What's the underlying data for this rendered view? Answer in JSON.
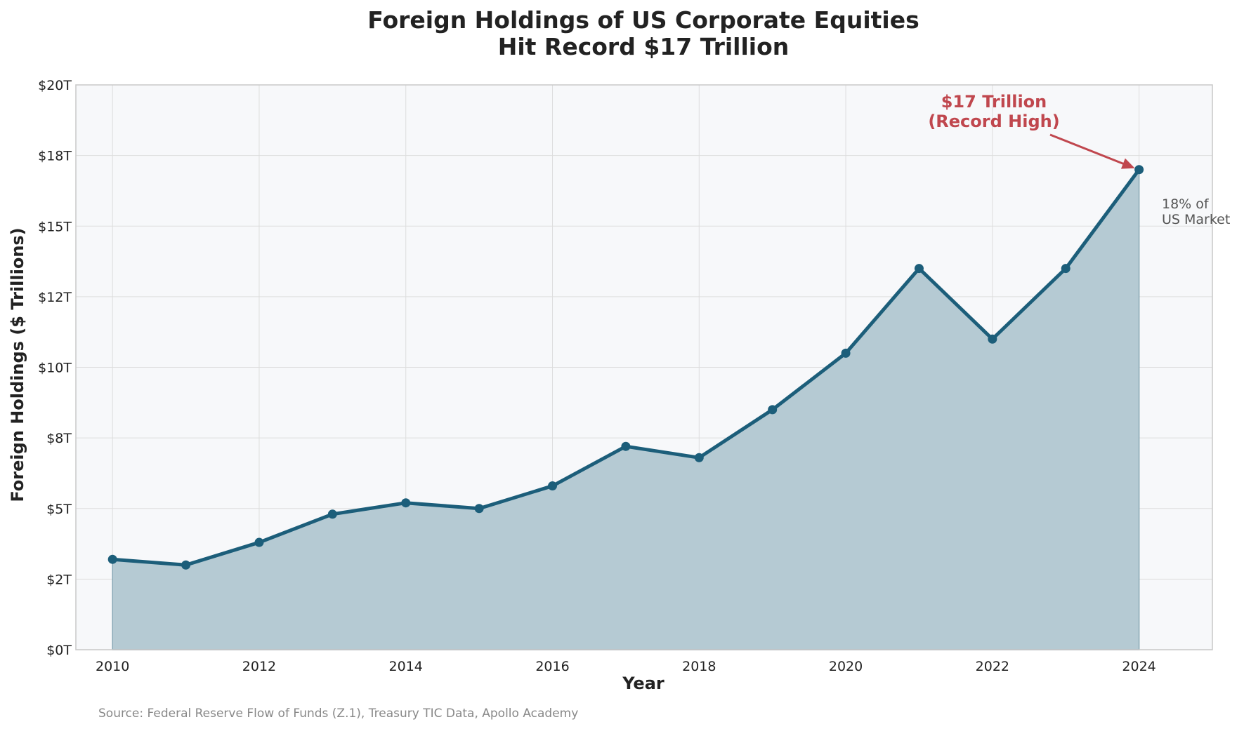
{
  "chart_data": {
    "type": "area",
    "title_lines": [
      "Foreign Holdings of US Corporate Equities",
      "Hit Record $17 Trillion"
    ],
    "xlabel": "Year",
    "ylabel": "Foreign Holdings ($ Trillions)",
    "x": [
      2010,
      2011,
      2012,
      2013,
      2014,
      2015,
      2016,
      2017,
      2018,
      2019,
      2020,
      2021,
      2022,
      2023,
      2024
    ],
    "values": [
      3.2,
      3.0,
      3.8,
      4.8,
      5.2,
      5.0,
      5.8,
      7.2,
      6.8,
      8.5,
      10.5,
      13.5,
      11.0,
      13.5,
      17.0
    ],
    "xlim": [
      2009.5,
      2025
    ],
    "ylim": [
      0,
      20
    ],
    "x_ticks": [
      2010,
      2012,
      2014,
      2016,
      2018,
      2020,
      2022,
      2024
    ],
    "y_ticks": [
      0,
      2.5,
      5,
      7.5,
      10,
      12.5,
      15,
      17.5,
      20
    ],
    "y_tick_labels": [
      "$0T",
      "$2T",
      "$5T",
      "$8T",
      "$10T",
      "$12T",
      "$15T",
      "$18T",
      "$20T"
    ],
    "grid": true,
    "annotation": {
      "lines": [
        "$17 Trillion",
        "(Record High)"
      ],
      "target_x": 2024,
      "target_y": 17.0
    },
    "side_note_lines": [
      "18% of",
      "US Market"
    ],
    "source": "Source: Federal Reserve Flow of Funds (Z.1), Treasury TIC Data, Apollo Academy",
    "colors": {
      "line": "#1c5e7a",
      "fill": "#b5cad3",
      "annotation": "#c0474e",
      "plot_bg": "#f7f8fa",
      "grid": "#dddddd"
    }
  }
}
